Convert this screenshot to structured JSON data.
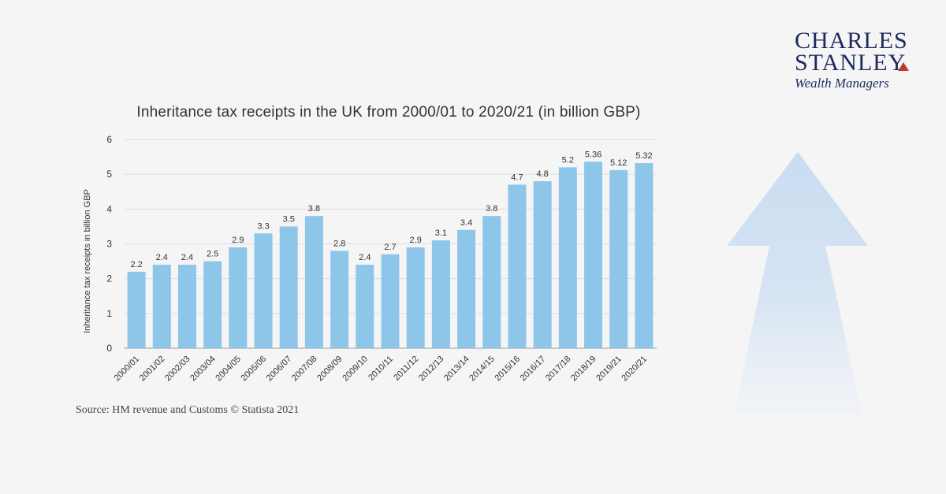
{
  "brand": {
    "line1": "CHARLES",
    "line2": "STANLEY",
    "tagline": "Wealth Managers",
    "text_color": "#1f2a5c",
    "accent_color": "#c0392b"
  },
  "source_text": "Source: HM revenue and Customs © Statista 2021",
  "decoration": {
    "icon": "up-arrow-icon",
    "color": "#c9dcf2"
  },
  "chart_data": {
    "type": "bar",
    "title": "Inheritance tax receipts in the UK from 2000/01 to 2020/21 (in billion GBP)",
    "xlabel": "",
    "ylabel": "Inheritance tax receipts in billion GBP",
    "ylim": [
      0,
      6
    ],
    "yticks": [
      0,
      1,
      2,
      3,
      4,
      5,
      6
    ],
    "grid": true,
    "bar_color": "#8ec6ea",
    "categories": [
      "2000/01",
      "2001/02",
      "2002/03",
      "2003/04",
      "2004/05",
      "2005/06",
      "2006/07",
      "2007/08",
      "2008/09",
      "2009/10",
      "2010/11",
      "2011/12",
      "2012/13",
      "2013/14",
      "2014/15",
      "2015/16",
      "2016/17",
      "2017/18",
      "2018/19",
      "2019/21",
      "2020/21"
    ],
    "values": [
      2.2,
      2.4,
      2.4,
      2.5,
      2.9,
      3.3,
      3.5,
      3.8,
      2.8,
      2.4,
      2.7,
      2.9,
      3.1,
      3.4,
      3.8,
      4.7,
      4.8,
      5.2,
      5.36,
      5.12,
      5.32
    ],
    "value_labels": [
      "2.2",
      "2.4",
      "2.4",
      "2.5",
      "2.9",
      "3.3",
      "3.5",
      "3.8",
      "2.8",
      "2.4",
      "2.7",
      "2.9",
      "3.1",
      "3.4",
      "3.8",
      "4.7",
      "4.8",
      "5.2",
      "5.36",
      "5.12",
      "5.32"
    ]
  }
}
